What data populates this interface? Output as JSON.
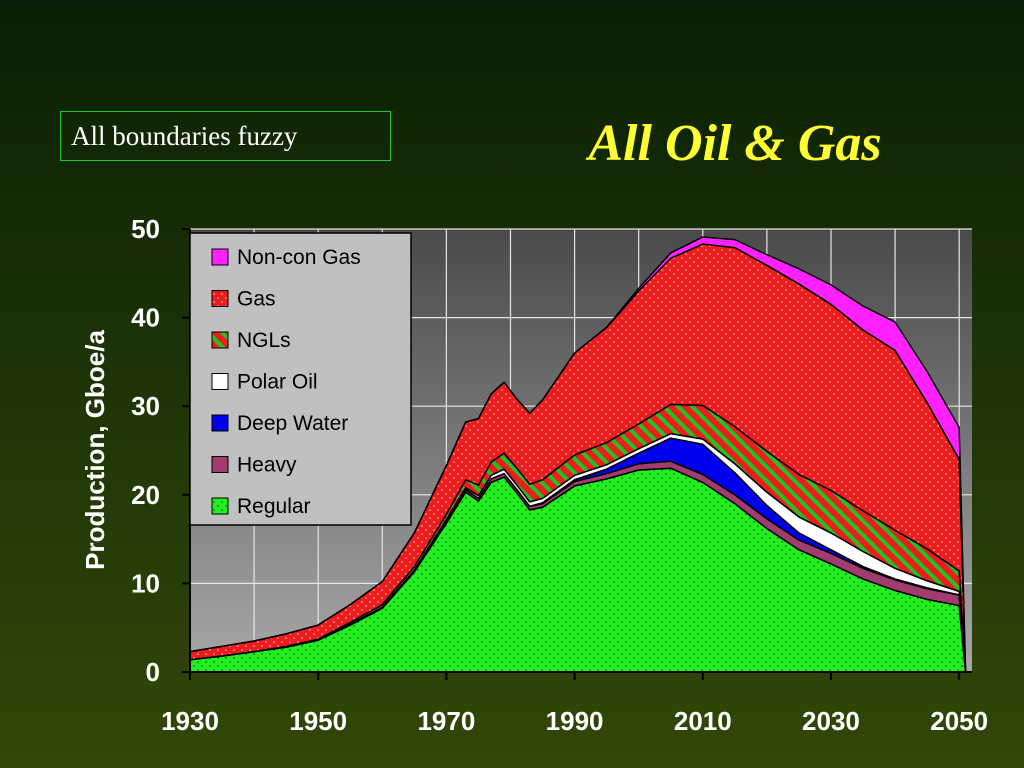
{
  "slide": {
    "note": "All boundaries fuzzy",
    "title": "All Oil & Gas"
  },
  "chart_data": {
    "type": "area",
    "stacked": true,
    "xlabel": "",
    "ylabel": "Production, Gboe/a",
    "xlim": [
      1930,
      2052
    ],
    "ylim": [
      0,
      50
    ],
    "x_ticks": [
      1930,
      1950,
      1970,
      1990,
      2010,
      2030,
      2050
    ],
    "y_ticks": [
      0,
      10,
      20,
      30,
      40,
      50
    ],
    "grid": true,
    "legend_position": "top-left",
    "legend_order": [
      "Non-con Gas",
      "Gas",
      "NGLs",
      "Polar Oil",
      "Deep Water",
      "Heavy",
      "Regular"
    ],
    "x": [
      1930,
      1935,
      1940,
      1945,
      1950,
      1955,
      1960,
      1965,
      1970,
      1973,
      1975,
      1977,
      1979,
      1981,
      1983,
      1985,
      1990,
      1995,
      2000,
      2005,
      2010,
      2015,
      2020,
      2025,
      2030,
      2035,
      2040,
      2045,
      2050,
      2051
    ],
    "series": [
      {
        "name": "Regular",
        "color": "#22ee22",
        "pattern": "dots",
        "values": [
          1.4,
          1.8,
          2.3,
          2.8,
          3.6,
          5.3,
          7.2,
          11.3,
          16.8,
          20.3,
          19.3,
          21.4,
          22.0,
          20.2,
          18.3,
          18.6,
          21.0,
          21.8,
          22.8,
          23.0,
          21.4,
          19.0,
          16.2,
          13.8,
          12.2,
          10.5,
          9.2,
          8.2,
          7.5,
          0.0
        ]
      },
      {
        "name": "Heavy",
        "color": "#a03c6e",
        "pattern": "solid",
        "values": [
          0.0,
          0.0,
          0.0,
          0.0,
          0.0,
          0.1,
          0.1,
          0.2,
          0.3,
          0.3,
          0.3,
          0.4,
          0.4,
          0.4,
          0.4,
          0.4,
          0.5,
          0.6,
          0.7,
          0.8,
          0.9,
          1.0,
          1.1,
          1.1,
          1.2,
          1.2,
          1.2,
          1.2,
          1.2,
          0.0
        ]
      },
      {
        "name": "Deep Water",
        "color": "#0000ee",
        "pattern": "solid",
        "values": [
          0.0,
          0.0,
          0.0,
          0.0,
          0.0,
          0.0,
          0.0,
          0.0,
          0.0,
          0.0,
          0.0,
          0.0,
          0.0,
          0.0,
          0.0,
          0.1,
          0.2,
          0.5,
          1.2,
          2.6,
          3.4,
          2.5,
          1.5,
          0.8,
          0.4,
          0.2,
          0.1,
          0.1,
          0.0,
          0.0
        ]
      },
      {
        "name": "Polar Oil",
        "color": "#ffffff",
        "pattern": "solid",
        "values": [
          0.0,
          0.0,
          0.0,
          0.0,
          0.0,
          0.0,
          0.0,
          0.0,
          0.1,
          0.2,
          0.3,
          0.4,
          0.5,
          0.5,
          0.5,
          0.5,
          0.5,
          0.5,
          0.5,
          0.5,
          0.6,
          1.0,
          1.5,
          1.8,
          1.9,
          1.7,
          1.2,
          0.8,
          0.4,
          0.0
        ]
      },
      {
        "name": "NGLs",
        "color": "#ee1c1c",
        "pattern": "stripes",
        "values": [
          0.0,
          0.0,
          0.0,
          0.1,
          0.1,
          0.2,
          0.3,
          0.4,
          0.6,
          0.9,
          1.2,
          1.5,
          1.8,
          1.9,
          2.0,
          2.1,
          2.3,
          2.5,
          2.8,
          3.3,
          3.8,
          4.2,
          4.6,
          4.8,
          4.8,
          4.6,
          4.3,
          3.6,
          2.3,
          0.0
        ]
      },
      {
        "name": "Gas",
        "color": "#ee1c1c",
        "pattern": "dots",
        "values": [
          0.9,
          1.1,
          1.2,
          1.4,
          1.6,
          2.0,
          2.6,
          3.8,
          5.5,
          6.5,
          7.5,
          7.7,
          8.0,
          7.8,
          8.0,
          9.0,
          11.5,
          13.0,
          15.0,
          16.5,
          18.2,
          20.2,
          21.0,
          21.5,
          21.0,
          20.4,
          20.3,
          16.5,
          12.6,
          0.0
        ]
      },
      {
        "name": "Non-con Gas",
        "color": "#ff22ff",
        "pattern": "solid",
        "values": [
          0.0,
          0.0,
          0.0,
          0.0,
          0.0,
          0.0,
          0.0,
          0.0,
          0.0,
          0.0,
          0.0,
          0.0,
          0.0,
          0.0,
          0.0,
          0.0,
          0.0,
          0.0,
          0.3,
          0.6,
          0.8,
          0.9,
          1.2,
          1.7,
          2.2,
          2.7,
          3.2,
          3.5,
          3.6,
          0.0
        ]
      }
    ]
  }
}
